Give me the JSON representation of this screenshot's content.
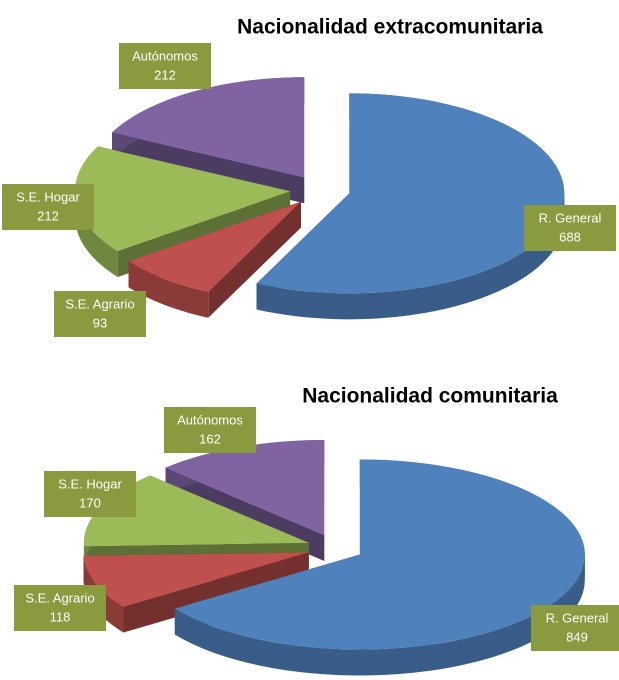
{
  "chart_data": [
    {
      "type": "pie",
      "title": "Nacionalidad extracomunitaria",
      "categories": [
        "R. General",
        "S.E. Agrario",
        "S.E. Hogar",
        "Autónomos"
      ],
      "values": [
        688,
        93,
        212,
        212
      ],
      "colors": [
        "#4f81bd",
        "#c0504d",
        "#9bbb59",
        "#8064a2"
      ]
    },
    {
      "type": "pie",
      "title": "Nacionalidad comunitaria",
      "categories": [
        "R. General",
        "S.E. Agrario",
        "S.E. Hogar",
        "Autónomos"
      ],
      "values": [
        849,
        118,
        170,
        162
      ],
      "colors": [
        "#4f81bd",
        "#c0504d",
        "#9bbb59",
        "#8064a2"
      ]
    }
  ]
}
